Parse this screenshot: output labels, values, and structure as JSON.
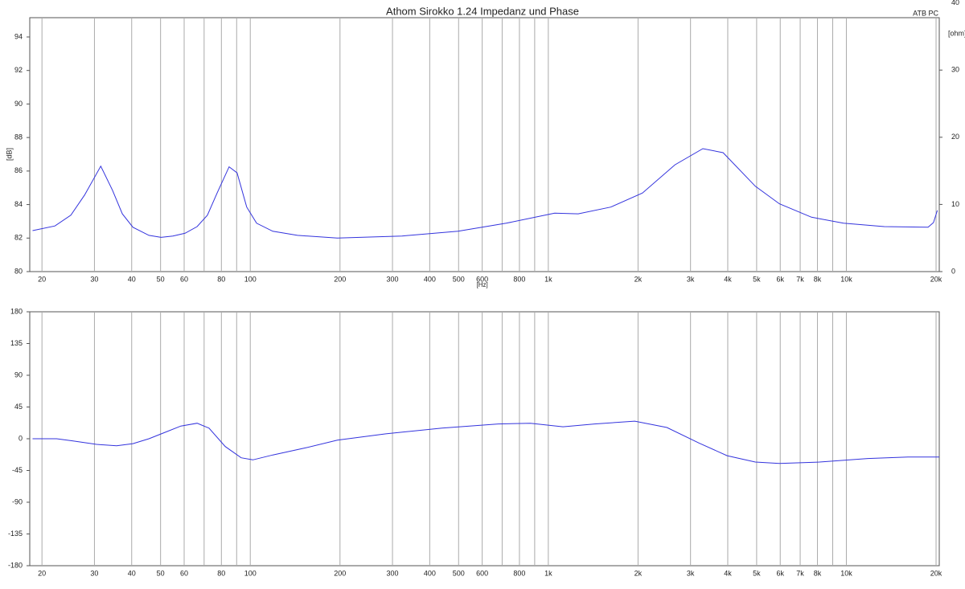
{
  "chart_data": [
    {
      "type": "line",
      "title": "Athom Sirokko 1.24 Impedanz und Phase",
      "annotation": "ATB PC",
      "ylabel": "[dB]",
      "y2label": "[ohm]",
      "xlabel": "[Hz]",
      "xscale": "log",
      "xlim": [
        18.2,
        20500
      ],
      "ylim": [
        80,
        95.15
      ],
      "y2lim": [
        0,
        37.8
      ],
      "yticks": [
        80,
        82,
        84,
        86,
        88,
        90,
        92,
        94
      ],
      "y2ticks": [
        0,
        10,
        20,
        30,
        40
      ],
      "xticks": [
        20,
        30,
        40,
        50,
        60,
        80,
        100,
        200,
        300,
        400,
        500,
        600,
        800,
        {
          "value": 1000,
          "label": "1k"
        },
        {
          "value": 2000,
          "label": "2k"
        },
        {
          "value": 3000,
          "label": "3k"
        },
        {
          "value": 4000,
          "label": "4k"
        },
        {
          "value": 5000,
          "label": "5k"
        },
        {
          "value": 6000,
          "label": "6k"
        },
        {
          "value": 7000,
          "label": "7k"
        },
        {
          "value": 8000,
          "label": "8k"
        },
        {
          "value": 10000,
          "label": "10k"
        },
        {
          "value": 20000,
          "label": "20k"
        }
      ],
      "xminorticks": [
        70,
        90,
        700,
        900,
        9000
      ],
      "x": [
        18.6,
        22.1,
        25,
        27.8,
        31.5,
        34.5,
        37.2,
        40.4,
        45.7,
        50.2,
        55,
        60.4,
        66.3,
        71.8,
        77.4,
        84.9,
        90.3,
        97.3,
        105,
        119,
        144,
        196,
        323,
        498,
        722,
        1050,
        1260,
        1620,
        2070,
        2660,
        3300,
        3860,
        4950,
        5960,
        7640,
        9790,
        13400,
        18800,
        19600,
        20200
      ],
      "series": [
        {
          "color": "#3333dd",
          "axis": "y2",
          "values": [
            6.1,
            6.8,
            8.4,
            11.4,
            15.7,
            12.1,
            8.6,
            6.6,
            5.4,
            5.1,
            5.3,
            5.7,
            6.7,
            8.4,
            11.7,
            15.6,
            14.7,
            9.6,
            7.2,
            6.0,
            5.4,
            5.0,
            5.3,
            6.0,
            7.2,
            8.7,
            8.6,
            9.6,
            11.7,
            15.9,
            18.3,
            17.7,
            12.7,
            10.1,
            8.1,
            7.2,
            6.7,
            6.6,
            7.3,
            9.1
          ]
        }
      ]
    },
    {
      "type": "line",
      "xscale": "log",
      "xlim": [
        18.2,
        20500
      ],
      "ylim": [
        -180,
        180
      ],
      "yticks": [
        -180,
        -135,
        -90,
        -45,
        0,
        45,
        90,
        135,
        180
      ],
      "xticks": [
        20,
        30,
        40,
        50,
        60,
        80,
        100,
        200,
        300,
        400,
        500,
        600,
        800,
        {
          "value": 1000,
          "label": "1k"
        },
        {
          "value": 2000,
          "label": "2k"
        },
        {
          "value": 3000,
          "label": "3k"
        },
        {
          "value": 4000,
          "label": "4k"
        },
        {
          "value": 5000,
          "label": "5k"
        },
        {
          "value": 6000,
          "label": "6k"
        },
        {
          "value": 7000,
          "label": "7k"
        },
        {
          "value": 8000,
          "label": "8k"
        },
        {
          "value": 10000,
          "label": "10k"
        },
        {
          "value": 20000,
          "label": "20k"
        }
      ],
      "xminorticks": [
        70,
        90,
        700,
        900,
        9000
      ],
      "x": [
        18.6,
        22.4,
        25.3,
        30.5,
        35.6,
        40.4,
        45.7,
        51.7,
        58.5,
        66.3,
        72.7,
        82.4,
        93.2,
        102,
        119,
        153,
        196,
        285,
        440,
        679,
        871,
        1120,
        1430,
        1950,
        2500,
        3200,
        3980,
        4950,
        5960,
        8130,
        11800,
        16100,
        20500
      ],
      "series": [
        {
          "color": "#3333dd",
          "values": [
            0,
            0,
            -3,
            -8,
            -10,
            -7,
            0,
            9,
            18,
            22,
            15,
            -11,
            -27,
            -30,
            -23,
            -13,
            -2,
            7,
            15,
            21,
            22,
            17,
            21,
            25,
            16,
            -6,
            -24,
            -33,
            -35,
            -33,
            -28,
            -26,
            -26
          ]
        }
      ]
    }
  ]
}
